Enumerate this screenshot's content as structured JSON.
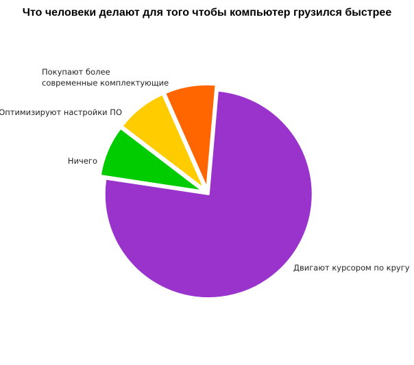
{
  "chart_data": {
    "type": "pie",
    "title": "Что человеки делают для того чтобы компьютер грузился быстрее",
    "slices": [
      {
        "label": "Двигают курсором по кругу",
        "value": 76,
        "color": "#9933cc"
      },
      {
        "label": "Ничего",
        "value": 8,
        "color": "#00cc00"
      },
      {
        "label": "Оптимизируют настройки ПО",
        "value": 8,
        "color": "#ffcc00"
      },
      {
        "label": "Покупают более современные комплектующие",
        "label_lines": [
          "Покупают более",
          "современные комплектующие"
        ],
        "value": 8,
        "color": "#ff6600"
      }
    ],
    "legend": "none"
  }
}
